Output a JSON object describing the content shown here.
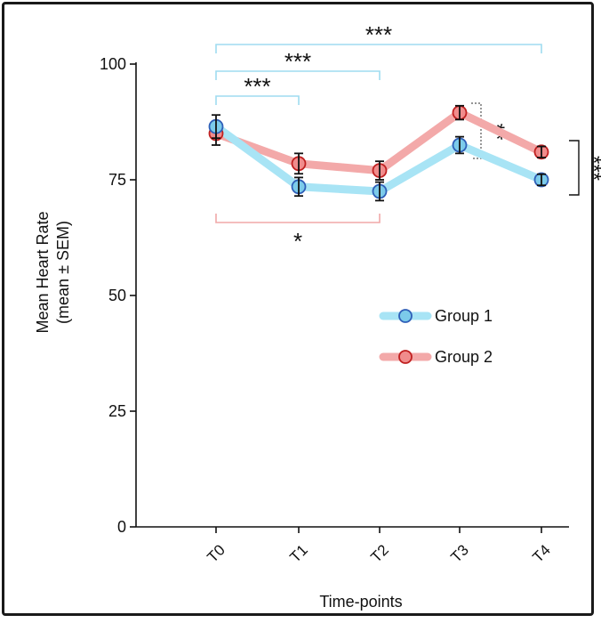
{
  "chart_data": {
    "type": "line",
    "title": "",
    "xlabel": "Time-points",
    "ylabel": [
      "Mean Heart Rate",
      "(mean ± SEM)"
    ],
    "categories": [
      "T0",
      "T1",
      "T2",
      "T3",
      "T4"
    ],
    "ylim": [
      0,
      100
    ],
    "yticks": [
      0,
      25,
      50,
      75,
      100
    ],
    "grid": false,
    "legend_position": "center-right",
    "series": [
      {
        "name": "Group 1",
        "values": [
          86.5,
          73.5,
          72.5,
          82.5,
          75
        ],
        "sem": [
          2.5,
          2,
          2,
          1.8,
          1.2
        ],
        "line_color": "#a8e4f5",
        "marker_fill": "#7ccbea",
        "marker_edge": "#2f5fb8"
      },
      {
        "name": "Group 2",
        "values": [
          85,
          78.5,
          77,
          89.5,
          81
        ],
        "sem": [
          2.5,
          2.2,
          2,
          1.5,
          1.2
        ],
        "line_color": "#f3a9a9",
        "marker_fill": "#f08c8c",
        "marker_edge": "#c02020"
      }
    ],
    "annotations": [
      {
        "label": "***",
        "from": "T0",
        "to": "T1",
        "group": "Group 1",
        "color": "#9fdcf0"
      },
      {
        "label": "***",
        "from": "T0",
        "to": "T2",
        "group": "Group 1",
        "color": "#9fdcf0"
      },
      {
        "label": "***",
        "from": "T0",
        "to": "T4",
        "group": "Group 1",
        "color": "#9fdcf0"
      },
      {
        "label": "*",
        "from": "T0",
        "to": "T2",
        "group": "Group 2",
        "color": "#f0a8a8"
      },
      {
        "label": "**",
        "at": "T3",
        "between": "groups"
      },
      {
        "label": "***",
        "at": "T4",
        "between": "groups"
      }
    ]
  }
}
